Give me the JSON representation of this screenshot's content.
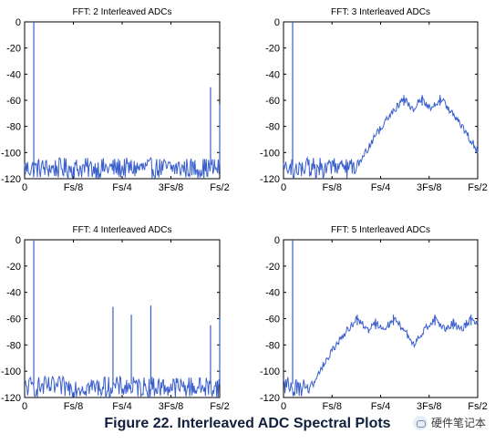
{
  "figure_caption": "Figure 22. Interleaved ADC Spectral Plots",
  "watermark": "硬件笔记本",
  "colors": {
    "trace": "#3a5fcd",
    "axis": "#000000",
    "text": "#000000"
  },
  "chart_data": [
    {
      "type": "line",
      "title": "FFT: 2 Interleaved ADCs",
      "xlabel": "",
      "ylabel": "",
      "x_ticks": [
        "0",
        "Fs/8",
        "Fs/4",
        "3Fs/8",
        "Fs/2"
      ],
      "y_ticks": [
        "0",
        "-20",
        "-40",
        "-60",
        "-80",
        "-100",
        "-120"
      ],
      "xlim": [
        0,
        0.5
      ],
      "ylim": [
        -120,
        0
      ],
      "grid": false,
      "noise_floor": -112,
      "noise_band": [
        -120,
        -104
      ],
      "spurs": [
        {
          "x": 0.0235,
          "y": 0
        },
        {
          "x": 0.4765,
          "y": -50
        },
        {
          "x": 0.5,
          "y": -63
        }
      ]
    },
    {
      "type": "line",
      "title": "FFT: 3 Interleaved ADCs",
      "xlabel": "",
      "ylabel": "",
      "x_ticks": [
        "0",
        "Fs/8",
        "Fs/4",
        "3Fs/8",
        "Fs/2"
      ],
      "y_ticks": [
        "0",
        "-20",
        "-40",
        "-60",
        "-80",
        "-100",
        "-120"
      ],
      "xlim": [
        0,
        0.5
      ],
      "ylim": [
        -120,
        0
      ],
      "grid": false,
      "noise_floor": -112,
      "noise_band": [
        -120,
        -104
      ],
      "spurs": [
        {
          "x": 0.0235,
          "y": 0
        }
      ],
      "broad_peaks": [
        {
          "x": 0.31,
          "y": -56
        },
        {
          "x": 0.357,
          "y": -56
        },
        {
          "x": 0.403,
          "y": -56
        }
      ]
    },
    {
      "type": "line",
      "title": "FFT: 4 Interleaved ADCs",
      "xlabel": "",
      "ylabel": "",
      "x_ticks": [
        "0",
        "Fs/8",
        "Fs/4",
        "3Fs/8",
        "Fs/2"
      ],
      "y_ticks": [
        "0",
        "-20",
        "-40",
        "-60",
        "-80",
        "-100",
        "-120"
      ],
      "xlim": [
        0,
        0.5
      ],
      "ylim": [
        -120,
        0
      ],
      "grid": false,
      "noise_floor": -112,
      "noise_band": [
        -120,
        -104
      ],
      "spurs": [
        {
          "x": 0.0235,
          "y": 0
        },
        {
          "x": 0.2265,
          "y": -51
        },
        {
          "x": 0.2735,
          "y": -57
        },
        {
          "x": 0.4765,
          "y": -65
        },
        {
          "x": 0.3235,
          "y": -50
        },
        {
          "x": 0.5,
          "y": -59
        }
      ]
    },
    {
      "type": "line",
      "title": "FFT: 5 Interleaved ADCs",
      "xlabel": "",
      "ylabel": "",
      "x_ticks": [
        "0",
        "Fs/8",
        "Fs/4",
        "3Fs/8",
        "Fs/2"
      ],
      "y_ticks": [
        "0",
        "-20",
        "-40",
        "-60",
        "-80",
        "-100",
        "-120"
      ],
      "xlim": [
        0,
        0.5
      ],
      "ylim": [
        -120,
        0
      ],
      "grid": false,
      "noise_floor": -112,
      "noise_band": [
        -120,
        -104
      ],
      "spurs": [
        {
          "x": 0.0235,
          "y": 0
        }
      ],
      "broad_peaks": [
        {
          "x": 0.19,
          "y": -57
        },
        {
          "x": 0.237,
          "y": -60
        },
        {
          "x": 0.283,
          "y": -57
        },
        {
          "x": 0.39,
          "y": -57
        },
        {
          "x": 0.437,
          "y": -60
        },
        {
          "x": 0.483,
          "y": -57
        }
      ]
    }
  ]
}
